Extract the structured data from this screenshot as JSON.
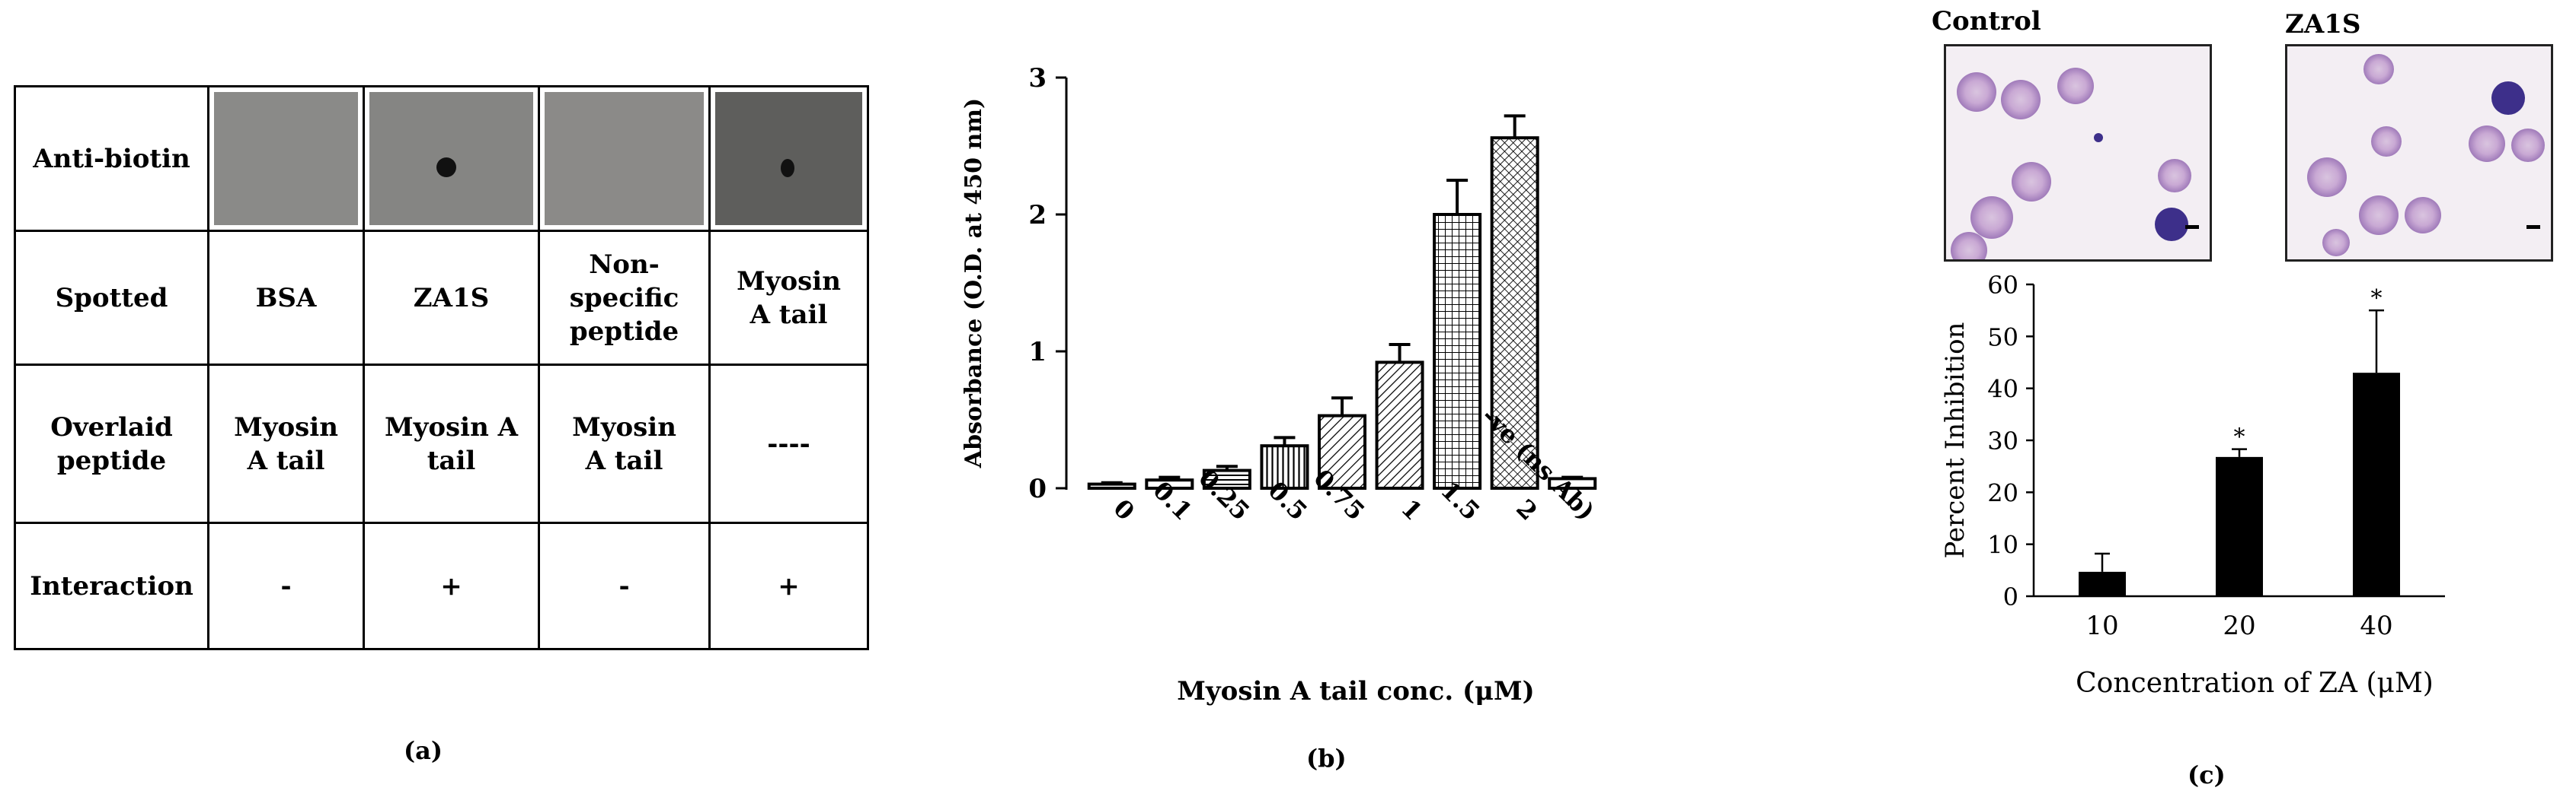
{
  "panel_a": {
    "rows": [
      {
        "header": "Anti-biotin",
        "cells": [
          "",
          "",
          "",
          ""
        ]
      },
      {
        "header": "Spotted",
        "cells": [
          "BSA",
          "ZA1S",
          "Non-specific peptide",
          "Myosin A tail"
        ]
      },
      {
        "header": "Overlaid peptide",
        "cells": [
          "Myosin A tail",
          "Myosin A tail",
          "Myosin A tail",
          "----"
        ]
      },
      {
        "header": "Interaction",
        "cells": [
          "-",
          "+",
          "-",
          "+"
        ]
      }
    ],
    "caption": "(a)"
  },
  "panel_b": {
    "caption": "(b)"
  },
  "panel_c": {
    "image_labels": [
      "Control",
      "ZA1S"
    ],
    "caption": "(c)"
  },
  "chart_data": [
    {
      "type": "bar",
      "id": "b",
      "title": "",
      "xlabel": "Myosin A tail conc. (μM)",
      "ylabel": "Absorbance (O.D. at 450 nm)",
      "categories": [
        "0",
        "0.1",
        "0.25",
        "0.5",
        "0.75",
        "1",
        "1.5",
        "2",
        "-ve (ns Ab)"
      ],
      "values": [
        0.03,
        0.06,
        0.13,
        0.31,
        0.53,
        0.92,
        2.0,
        2.56,
        0.07
      ],
      "errors": [
        0.01,
        0.02,
        0.03,
        0.06,
        0.13,
        0.13,
        0.25,
        0.16,
        0.01
      ],
      "ylim": [
        0,
        3
      ],
      "yticks": [
        0,
        1,
        2,
        3
      ]
    },
    {
      "type": "bar",
      "id": "c",
      "title": "",
      "xlabel": "Concentration of ZA (μM)",
      "ylabel": "Percent Inhibition",
      "categories": [
        "10",
        "20",
        "40"
      ],
      "values": [
        4.7,
        26.8,
        43.0
      ],
      "errors": [
        3.5,
        1.5,
        12.0
      ],
      "significance": [
        "",
        "*",
        "*"
      ],
      "ylim": [
        0,
        60
      ],
      "yticks": [
        0,
        10,
        20,
        30,
        40,
        50,
        60
      ]
    }
  ]
}
